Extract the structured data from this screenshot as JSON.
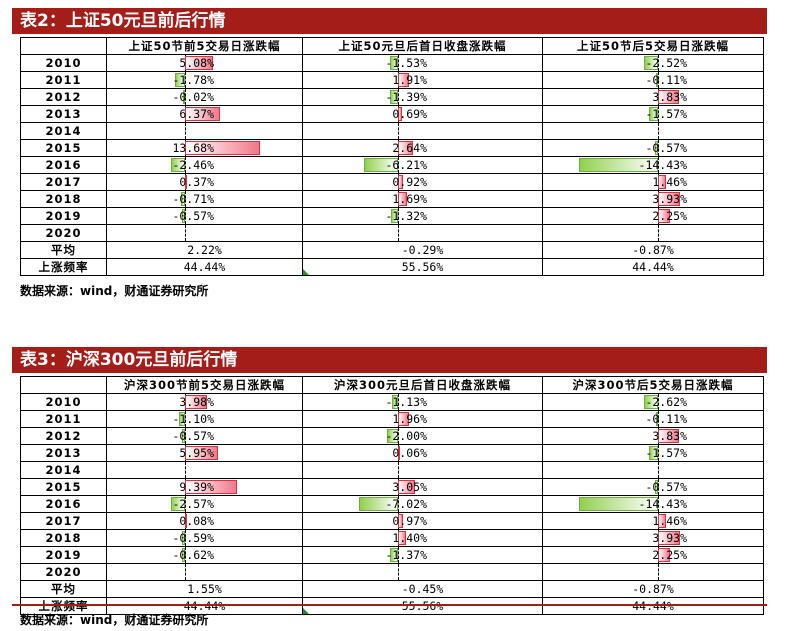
{
  "tables": [
    {
      "title": "表2：上证50元旦前后行情",
      "headers": [
        "",
        "上证50节前5交易日涨跌幅",
        "上证50元旦后首日收盘涨跌幅",
        "上证50节后5交易日涨跌幅"
      ],
      "rows": [
        {
          "label": "2010",
          "c1": "5.08%",
          "c2": "-1.53%",
          "c3": "-2.52%",
          "v1": 5.08,
          "v2": -1.53,
          "v3": -2.52
        },
        {
          "label": "2011",
          "c1": "-1.78%",
          "c2": "1.91%",
          "c3": "-0.11%",
          "v1": -1.78,
          "v2": 1.91,
          "v3": -0.11
        },
        {
          "label": "2012",
          "c1": "-0.02%",
          "c2": "-1.39%",
          "c3": "3.83%",
          "v1": -0.02,
          "v2": -1.39,
          "v3": 3.83
        },
        {
          "label": "2013",
          "c1": "6.37%",
          "c2": "0.69%",
          "c3": "-1.57%",
          "v1": 6.37,
          "v2": 0.69,
          "v3": -1.57
        },
        {
          "label": "2014",
          "c1": "",
          "c2": "",
          "c3": "",
          "v1": null,
          "v2": null,
          "v3": null
        },
        {
          "label": "2015",
          "c1": "13.68%",
          "c2": "2.64%",
          "c3": "-0.57%",
          "v1": 13.68,
          "v2": 2.64,
          "v3": -0.57
        },
        {
          "label": "2016",
          "c1": "-2.46%",
          "c2": "-6.21%",
          "c3": "-14.43%",
          "v1": -2.46,
          "v2": -6.21,
          "v3": -14.43
        },
        {
          "label": "2017",
          "c1": "0.37%",
          "c2": "0.92%",
          "c3": "1.46%",
          "v1": 0.37,
          "v2": 0.92,
          "v3": 1.46
        },
        {
          "label": "2018",
          "c1": "-0.71%",
          "c2": "1.69%",
          "c3": "3.93%",
          "v1": -0.71,
          "v2": 1.69,
          "v3": 3.93
        },
        {
          "label": "2019",
          "c1": "-0.57%",
          "c2": "-1.32%",
          "c3": "2.25%",
          "v1": -0.57,
          "v2": -1.32,
          "v3": 2.25
        },
        {
          "label": "2020",
          "c1": "",
          "c2": "",
          "c3": "",
          "v1": null,
          "v2": null,
          "v3": null
        }
      ],
      "summary": [
        {
          "label": "平均",
          "c1": "2.22%",
          "c2": "-0.29%",
          "c3": "-0.87%"
        },
        {
          "label": "上涨频率",
          "c1": "44.44%",
          "c2": "55.56%",
          "c3": "44.44%"
        }
      ],
      "source": "数据来源：wind，财通证券研究所"
    },
    {
      "title": "表3：沪深300元旦前后行情",
      "headers": [
        "",
        "沪深300节前5交易日涨跌幅",
        "沪深300元旦后首日收盘涨跌幅",
        "沪深300节后5交易日涨跌幅"
      ],
      "rows": [
        {
          "label": "2010",
          "c1": "3.98%",
          "c2": "-1.13%",
          "c3": "-2.62%",
          "v1": 3.98,
          "v2": -1.13,
          "v3": -2.62
        },
        {
          "label": "2011",
          "c1": "-1.10%",
          "c2": "1.96%",
          "c3": "-0.11%",
          "v1": -1.1,
          "v2": 1.96,
          "v3": -0.11
        },
        {
          "label": "2012",
          "c1": "-0.57%",
          "c2": "-2.00%",
          "c3": "3.83%",
          "v1": -0.57,
          "v2": -2.0,
          "v3": 3.83
        },
        {
          "label": "2013",
          "c1": "5.95%",
          "c2": "0.06%",
          "c3": "-1.57%",
          "v1": 5.95,
          "v2": 0.06,
          "v3": -1.57
        },
        {
          "label": "2014",
          "c1": "",
          "c2": "",
          "c3": "",
          "v1": null,
          "v2": null,
          "v3": null
        },
        {
          "label": "2015",
          "c1": "9.39%",
          "c2": "3.05%",
          "c3": "-0.57%",
          "v1": 9.39,
          "v2": 3.05,
          "v3": -0.57
        },
        {
          "label": "2016",
          "c1": "-2.57%",
          "c2": "-7.02%",
          "c3": "-14.43%",
          "v1": -2.57,
          "v2": -7.02,
          "v3": -14.43
        },
        {
          "label": "2017",
          "c1": "0.08%",
          "c2": "0.97%",
          "c3": "1.46%",
          "v1": 0.08,
          "v2": 0.97,
          "v3": 1.46
        },
        {
          "label": "2018",
          "c1": "-0.59%",
          "c2": "1.40%",
          "c3": "3.93%",
          "v1": -0.59,
          "v2": 1.4,
          "v3": 3.93
        },
        {
          "label": "2019",
          "c1": "-0.62%",
          "c2": "-1.37%",
          "c3": "2.25%",
          "v1": -0.62,
          "v2": -1.37,
          "v3": 2.25
        },
        {
          "label": "2020",
          "c1": "",
          "c2": "",
          "c3": "",
          "v1": null,
          "v2": null,
          "v3": null
        }
      ],
      "summary": [
        {
          "label": "平均",
          "c1": "1.55%",
          "c2": "-0.45%",
          "c3": "-0.87%"
        },
        {
          "label": "上涨频率",
          "c1": "44.44%",
          "c2": "55.56%",
          "c3": "44.44%"
        }
      ],
      "source": "数据来源：wind，财通证券研究所"
    }
  ],
  "colors": {
    "banner": "#a51d18",
    "positive": "#f0788a",
    "negative": "#92d050"
  }
}
